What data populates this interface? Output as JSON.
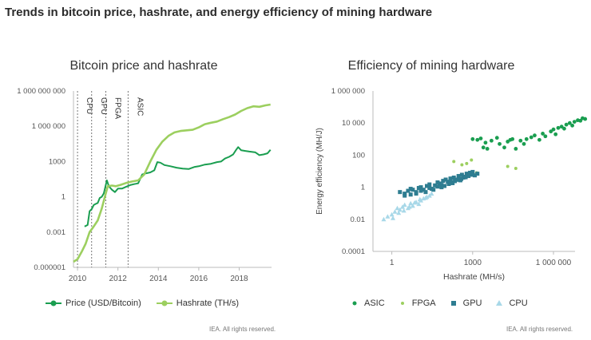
{
  "page": {
    "title": "Trends in bitcoin price, hashrate, and energy efficiency of mining hardware",
    "footnote_left": "IEA. All rights reserved.",
    "footnote_right": "IEA. All rights reserved."
  },
  "colors": {
    "price": "#1a9e50",
    "hashrate": "#9ccf5f",
    "asic": "#1a9e50",
    "fpga": "#9ccf5f",
    "gpu": "#2e7d91",
    "cpu": "#a8d8e8",
    "axis": "#bbbbbb",
    "era_line": "#555555"
  },
  "chart_data": [
    {
      "type": "line",
      "title": "Bitcoin price and hashrate",
      "xlabel": "",
      "ylabel": "",
      "xlim": [
        2009.8,
        2019.6
      ],
      "ylim_log10": [
        -6,
        9
      ],
      "scale": "log",
      "x_ticks": [
        2010,
        2012,
        2014,
        2016,
        2018
      ],
      "x_tick_labels": [
        "2010",
        "2012",
        "2014",
        "2016",
        "2018"
      ],
      "y_ticks_log10": [
        -6,
        -3,
        0,
        3,
        6,
        9
      ],
      "y_tick_labels": [
        "0.000001",
        "0.001",
        "1",
        "1000",
        "1 000 000",
        "1 000 000 000"
      ],
      "eras": [
        {
          "label": "CPU",
          "start": 2010.0
        },
        {
          "label": "GPU",
          "start": 2010.7
        },
        {
          "label": "FPGA",
          "start": 2011.4
        },
        {
          "label": "ASIC",
          "start": 2012.5
        }
      ],
      "series": [
        {
          "name": "Price (USD/Bitcoin)",
          "x": [
            2010.35,
            2010.5,
            2010.6,
            2010.7,
            2010.8,
            2010.9,
            2011.0,
            2011.1,
            2011.2,
            2011.3,
            2011.45,
            2011.55,
            2011.7,
            2011.85,
            2012.0,
            2012.2,
            2012.4,
            2012.6,
            2012.8,
            2013.0,
            2013.2,
            2013.4,
            2013.6,
            2013.8,
            2013.95,
            2014.1,
            2014.3,
            2014.6,
            2014.9,
            2015.2,
            2015.5,
            2015.8,
            2016.0,
            2016.3,
            2016.6,
            2016.9,
            2017.1,
            2017.3,
            2017.5,
            2017.7,
            2017.85,
            2017.95,
            2018.1,
            2018.3,
            2018.5,
            2018.8,
            2019.0,
            2019.2,
            2019.4,
            2019.55
          ],
          "values": [
            0.003,
            0.004,
            0.06,
            0.09,
            0.2,
            0.25,
            0.3,
            0.8,
            1,
            2,
            25,
            8,
            4,
            2.5,
            5,
            5,
            7,
            10,
            12,
            14,
            80,
            100,
            120,
            180,
            900,
            800,
            500,
            400,
            300,
            250,
            230,
            350,
            400,
            550,
            650,
            900,
            1000,
            1800,
            2500,
            4000,
            10000,
            17000,
            9000,
            8000,
            7000,
            6000,
            3500,
            4000,
            5000,
            10000
          ]
        },
        {
          "name": "Hashrate (TH/s)",
          "x": [
            2009.8,
            2010.0,
            2010.2,
            2010.4,
            2010.6,
            2010.8,
            2011.0,
            2011.2,
            2011.4,
            2011.5,
            2011.7,
            2011.9,
            2012.1,
            2012.4,
            2012.7,
            2013.0,
            2013.3,
            2013.6,
            2013.9,
            2014.2,
            2014.5,
            2014.8,
            2015.1,
            2015.4,
            2015.7,
            2016.0,
            2016.3,
            2016.6,
            2016.9,
            2017.2,
            2017.5,
            2017.8,
            2018.1,
            2018.4,
            2018.7,
            2019.0,
            2019.3,
            2019.55
          ],
          "values": [
            3e-06,
            5e-06,
            2e-05,
            0.0001,
            0.001,
            0.003,
            0.01,
            0.1,
            2,
            8,
            9,
            8,
            10,
            15,
            20,
            25,
            80,
            1000,
            10000,
            50000,
            150000,
            300000,
            400000,
            450000,
            500000,
            800000,
            1500000,
            2000000,
            2500000,
            4000000,
            6000000,
            10000000,
            20000000,
            35000000,
            50000000,
            45000000,
            60000000,
            70000000
          ]
        }
      ]
    },
    {
      "type": "scatter",
      "title": "Efficiency of mining hardware",
      "xlabel": "Hashrate (MH/s)",
      "ylabel": "Energy efficiency (MH/J)",
      "scale": "log",
      "xlim_log10": [
        -0.7,
        6.8
      ],
      "ylim_log10": [
        -4,
        6
      ],
      "x_ticks_log10": [
        0,
        3,
        6
      ],
      "x_tick_labels": [
        "1",
        "1000",
        "1 000 000"
      ],
      "y_ticks_log10": [
        -4,
        -2,
        0,
        2,
        4,
        6
      ],
      "y_tick_labels": [
        "0.0001",
        "0.01",
        "1",
        "100",
        "10 000",
        "1 000 000"
      ],
      "series": [
        {
          "name": "ASIC",
          "x": [
            1000,
            1500,
            2000,
            2500,
            3000,
            3500,
            5000,
            8000,
            10000,
            15000,
            20000,
            25000,
            30000,
            40000,
            60000,
            80000,
            100000,
            150000,
            200000,
            300000,
            400000,
            500000,
            800000,
            1000000,
            1200000,
            1500000,
            2000000,
            2500000,
            3000000,
            4000000,
            5000000,
            6000000,
            8000000,
            10000000,
            12000000,
            15000000
          ],
          "values": [
            1000,
            900,
            1100,
            300,
            600,
            250,
            800,
            1200,
            500,
            300,
            700,
            900,
            1000,
            250,
            800,
            500,
            1000,
            1300,
            1700,
            900,
            2200,
            1500,
            3000,
            4000,
            2000,
            5000,
            6000,
            4500,
            8000,
            10000,
            7000,
            12000,
            15000,
            14000,
            20000,
            18000
          ]
        },
        {
          "name": "FPGA",
          "x": [
            200,
            400,
            600,
            900,
            1400,
            20000,
            40000
          ],
          "values": [
            40,
            25,
            30,
            50,
            8,
            20,
            15
          ]
        },
        {
          "name": "GPU",
          "x": [
            2,
            3,
            4,
            5,
            6,
            8,
            10,
            12,
            15,
            20,
            25,
            30,
            40,
            50,
            60,
            70,
            80,
            100,
            120,
            150,
            180,
            200,
            250,
            300,
            350,
            400,
            500,
            600,
            700,
            800,
            900,
            1000,
            1200,
            1500,
            3,
            5,
            8,
            12,
            18,
            25,
            35,
            50,
            70,
            90,
            130,
            160,
            220,
            280,
            380,
            450,
            550,
            650,
            750,
            950
          ],
          "values": [
            0.5,
            0.4,
            0.6,
            0.8,
            0.7,
            0.5,
            0.9,
            1,
            0.7,
            1.2,
            1.5,
            0.8,
            1.3,
            2,
            1.7,
            1,
            2.5,
            3,
            2.2,
            3.5,
            1.8,
            4,
            3,
            5,
            2.7,
            6,
            4.5,
            7,
            5,
            8,
            6,
            9,
            5.5,
            7,
            0.3,
            0.35,
            0.4,
            0.6,
            0.5,
            0.9,
            0.7,
            1.1,
            1.4,
            1.2,
            1.6,
            2.1,
            2.4,
            2.9,
            3.3,
            4,
            4.2,
            5.2,
            6.5,
            7.5
          ]
        },
        {
          "name": "CPU",
          "x": [
            0.5,
            0.7,
            1,
            1.3,
            1.6,
            2,
            2.5,
            3,
            4,
            5,
            6,
            8,
            10,
            12,
            15,
            20,
            25,
            30,
            1.1,
            1.8,
            2.8,
            4.5,
            7,
            11,
            18
          ],
          "values": [
            0.01,
            0.015,
            0.02,
            0.03,
            0.05,
            0.04,
            0.06,
            0.08,
            0.05,
            0.1,
            0.07,
            0.12,
            0.09,
            0.15,
            0.2,
            0.25,
            0.3,
            0.4,
            0.012,
            0.025,
            0.035,
            0.06,
            0.11,
            0.18,
            0.22
          ]
        }
      ]
    }
  ],
  "legends": {
    "left": [
      {
        "label": "Price (USD/Bitcoin)"
      },
      {
        "label": "Hashrate (TH/s)"
      }
    ],
    "right": [
      {
        "label": "ASIC"
      },
      {
        "label": "FPGA"
      },
      {
        "label": "GPU"
      },
      {
        "label": "CPU"
      }
    ]
  }
}
